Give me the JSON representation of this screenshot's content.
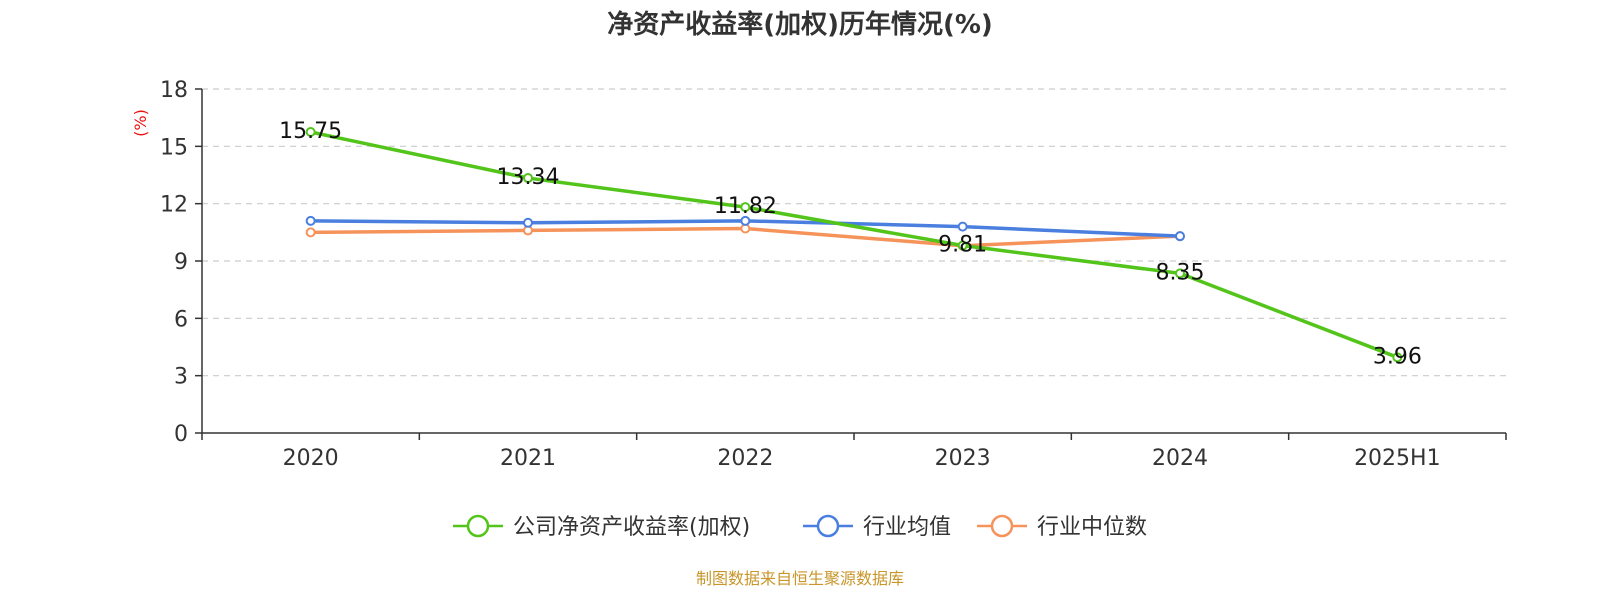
{
  "chart_data": {
    "type": "line",
    "title": "净资产收益率(加权)历年情况(%)",
    "ylabel": "(%)",
    "xlabel": "",
    "categories": [
      "2020",
      "2021",
      "2022",
      "2023",
      "2024",
      "2025H1"
    ],
    "ylim": [
      0,
      18
    ],
    "yticks": [
      0,
      3,
      6,
      9,
      12,
      15,
      18
    ],
    "grid": true,
    "legend_position": "bottom-center",
    "series": [
      {
        "name": "公司净资产收益率(加权)",
        "color": "#52c41a",
        "values": [
          15.75,
          13.34,
          11.82,
          9.81,
          8.35,
          3.96
        ],
        "data_labels": [
          "15.75",
          "13.34",
          "11.82",
          "9.81",
          "8.35",
          "3.96"
        ]
      },
      {
        "name": "行业均值",
        "color": "#4a7fe0",
        "values": [
          11.1,
          11.0,
          11.1,
          10.8,
          10.3,
          null
        ]
      },
      {
        "name": "行业中位数",
        "color": "#f5935a",
        "values": [
          10.5,
          10.6,
          10.7,
          9.8,
          10.3,
          null
        ]
      }
    ],
    "source": "制图数据来自恒生聚源数据库"
  }
}
